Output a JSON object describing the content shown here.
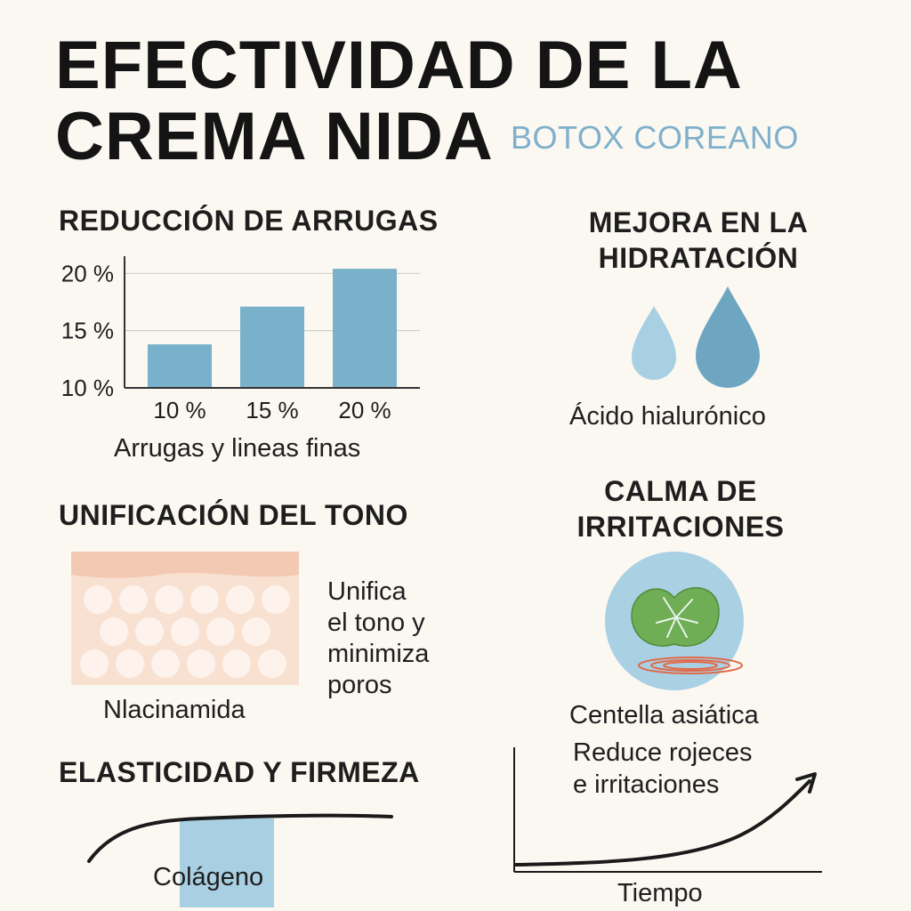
{
  "header": {
    "title_line1": "EFECTIVIDAD DE LA",
    "title_line2": "CREMA NIDA",
    "subtitle": "BOTOX COREANO"
  },
  "wrinkles": {
    "heading": "REDUCCIÓN DE ARRUGAS",
    "caption": "Arrugas y lineas finas"
  },
  "chart_data": {
    "type": "bar",
    "categories": [
      "10 %",
      "15 %",
      "20 %"
    ],
    "values": [
      13.8,
      17.1,
      20.4
    ],
    "ytick_labels": [
      "20 %",
      "15 %",
      "10 %"
    ],
    "ylim": [
      10,
      21.5
    ],
    "color": "#79b1cb",
    "grid": true
  },
  "hydration": {
    "heading_line1": "MEJORA EN LA",
    "heading_line2": "HIDRATACIÓN",
    "caption": "Ácido hialurónico"
  },
  "tone": {
    "heading": "UNIFICACIÓN DEL TONO",
    "ingredient": "Nlacinamida",
    "desc_line1": "Unifica",
    "desc_line2": "el tono y",
    "desc_line3": "minimiza",
    "desc_line4": "poros"
  },
  "calm": {
    "heading_line1": "CALMA DE",
    "heading_line2": "IRRITACIONES",
    "ingredient": "Centella asiática",
    "desc_line1": "Reduce rojeces",
    "desc_line2": "e irritaciones"
  },
  "elasticity": {
    "heading": "ELASTICIDAD Y FIRMEZA",
    "ingredient": "Colágeno"
  },
  "timeline": {
    "xlabel": "Tiempo"
  },
  "colors": {
    "accent_blue": "#79b1cb",
    "light_blue": "#a9cfe2",
    "skin_top": "#f3c9b3",
    "skin_body": "#f8e1d1",
    "leaf_green": "#6fae54"
  }
}
